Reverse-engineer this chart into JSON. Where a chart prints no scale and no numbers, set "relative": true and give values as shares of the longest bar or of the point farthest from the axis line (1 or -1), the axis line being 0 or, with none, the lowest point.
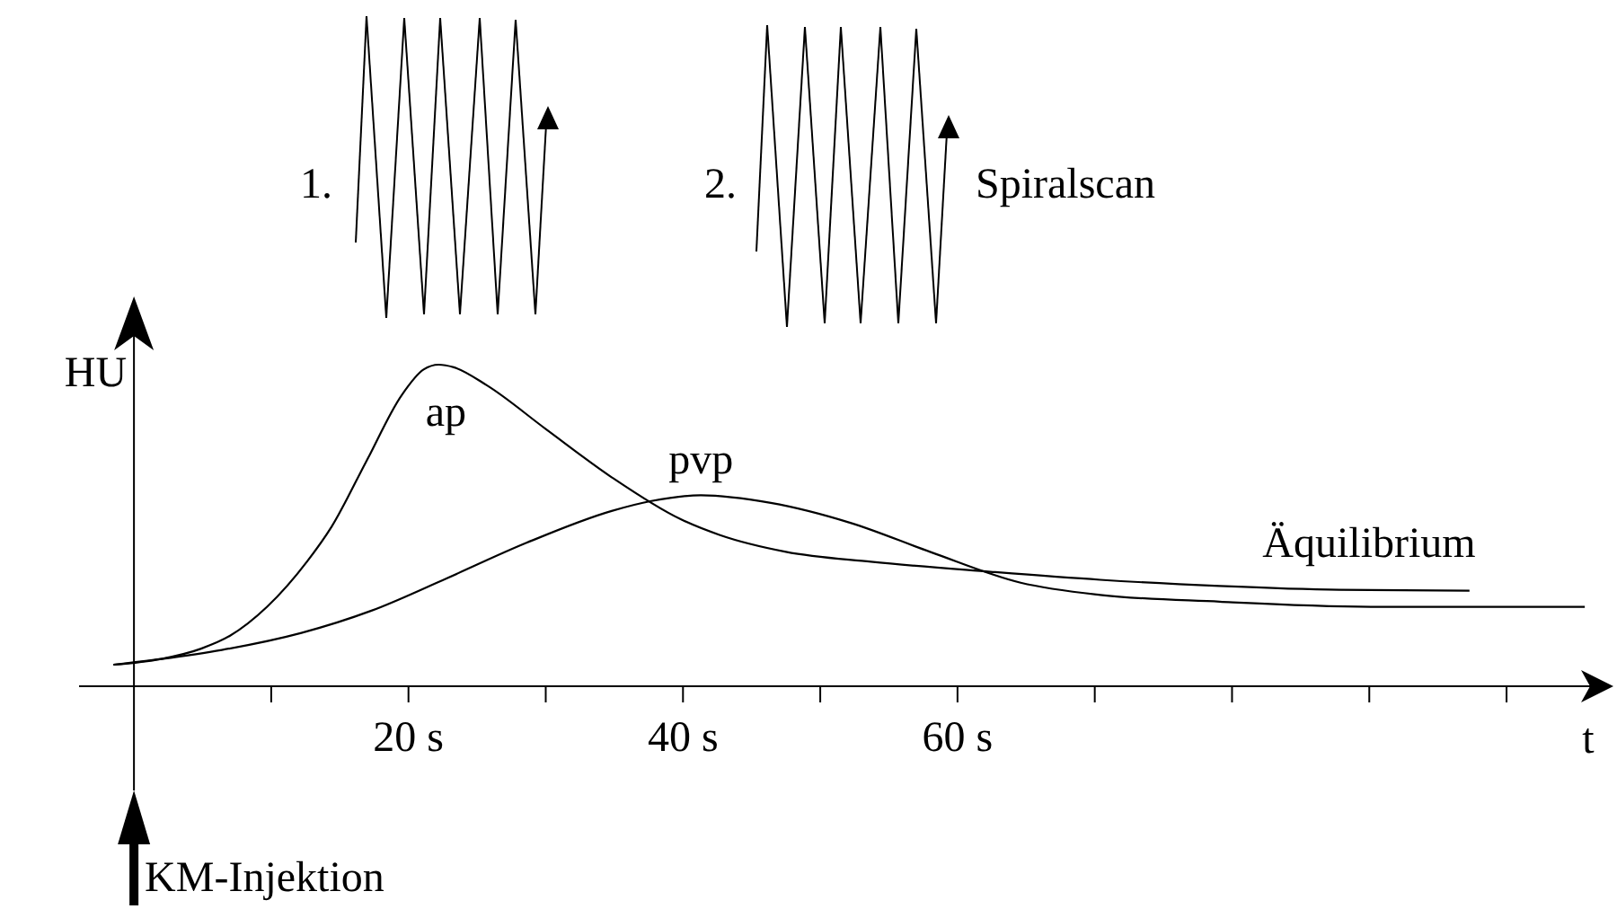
{
  "chart_data": {
    "type": "line",
    "relative": true,
    "xlabel": "t",
    "ylabel": "HU",
    "xlim": [
      -4,
      107
    ],
    "xticks": [
      {
        "value": 10,
        "label": null
      },
      {
        "value": 20,
        "label": "20 s"
      },
      {
        "value": 30,
        "label": null
      },
      {
        "value": 40,
        "label": "40 s"
      },
      {
        "value": 50,
        "label": null
      },
      {
        "value": 60,
        "label": "60 s"
      },
      {
        "value": 70,
        "label": null
      },
      {
        "value": 80,
        "label": null
      },
      {
        "value": 90,
        "label": null
      },
      {
        "value": 100,
        "label": null
      }
    ],
    "series": [
      {
        "name": "ap",
        "color": "#000000",
        "x": [
          -1.5,
          2,
          4.9,
          7,
          9.7,
          12.6,
          14.4,
          16.9,
          19.5,
          21.1,
          22.2,
          23.3,
          25.7,
          30,
          34.8,
          39.8,
          42.7,
          47.5,
          53.7,
          62.4,
          70.4,
          79.1,
          87.8,
          97.3
        ],
        "values": [
          0.067,
          0.085,
          0.117,
          0.157,
          0.247,
          0.387,
          0.496,
          0.697,
          0.905,
          0.985,
          1,
          0.992,
          0.936,
          0.8,
          0.65,
          0.52,
          0.47,
          0.418,
          0.387,
          0.356,
          0.331,
          0.312,
          0.3,
          0.297
        ]
      },
      {
        "name": "pvp",
        "color": "#000000",
        "x": [
          -1.5,
          2,
          6.4,
          12.2,
          17.3,
          22.7,
          28.6,
          34.8,
          37.7,
          41.3,
          46.4,
          52.2,
          58,
          64.6,
          70.4,
          79.1,
          90.7,
          105.7
        ],
        "values": [
          0.067,
          0.085,
          0.113,
          0.166,
          0.235,
          0.334,
          0.446,
          0.545,
          0.576,
          0.594,
          0.57,
          0.508,
          0.418,
          0.322,
          0.284,
          0.263,
          0.247,
          0.247
        ]
      }
    ],
    "marker": "none",
    "line_style": "solid",
    "annotations": [
      "1.",
      "2.",
      "Spiralscan",
      "Äquilibrium",
      "KM-Injektion"
    ]
  }
}
